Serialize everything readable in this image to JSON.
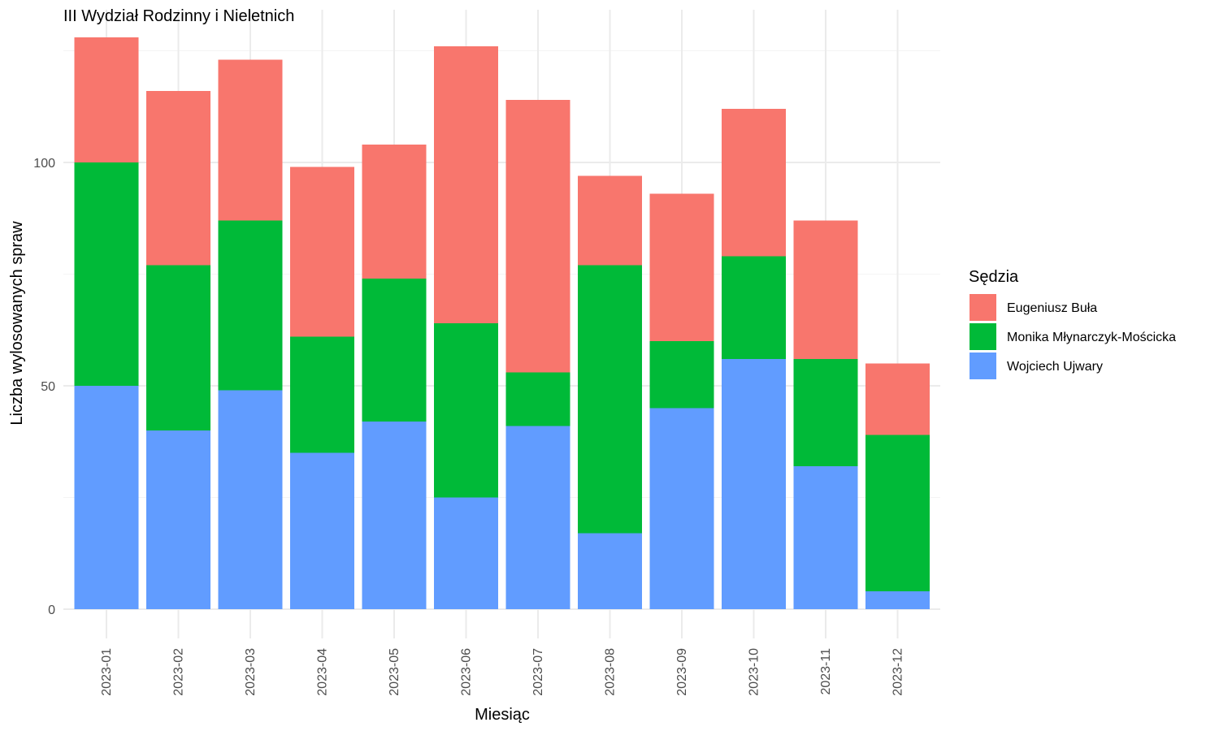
{
  "chart_data": {
    "type": "bar",
    "stacked": true,
    "title": "III Wydział Rodzinny i Nieletnich",
    "xlabel": "Miesiąc",
    "ylabel": "Liczba wylosowanych spraw",
    "ylim": [
      0,
      130
    ],
    "yticks": [
      0,
      50,
      100
    ],
    "grid": true,
    "legend": {
      "title": "Sędzia",
      "position": "right"
    },
    "categories": [
      "2023-01",
      "2023-02",
      "2023-03",
      "2023-04",
      "2023-05",
      "2023-06",
      "2023-07",
      "2023-08",
      "2023-09",
      "2023-10",
      "2023-11",
      "2023-12"
    ],
    "series": [
      {
        "name": "Wojciech Ujwary",
        "color": "#619CFF",
        "values": [
          50,
          40,
          49,
          35,
          42,
          25,
          41,
          17,
          45,
          56,
          32,
          4
        ]
      },
      {
        "name": "Monika Młynarczyk-Mościcka",
        "color": "#00BA38",
        "values": [
          50,
          37,
          38,
          26,
          32,
          39,
          12,
          60,
          15,
          23,
          24,
          35
        ]
      },
      {
        "name": "Eugeniusz Buła",
        "color": "#F8766D",
        "values": [
          28,
          39,
          36,
          38,
          30,
          62,
          61,
          20,
          33,
          33,
          31,
          16
        ]
      }
    ],
    "legend_order": [
      "Eugeniusz Buła",
      "Monika Młynarczyk-Mościcka",
      "Wojciech Ujwary"
    ]
  }
}
